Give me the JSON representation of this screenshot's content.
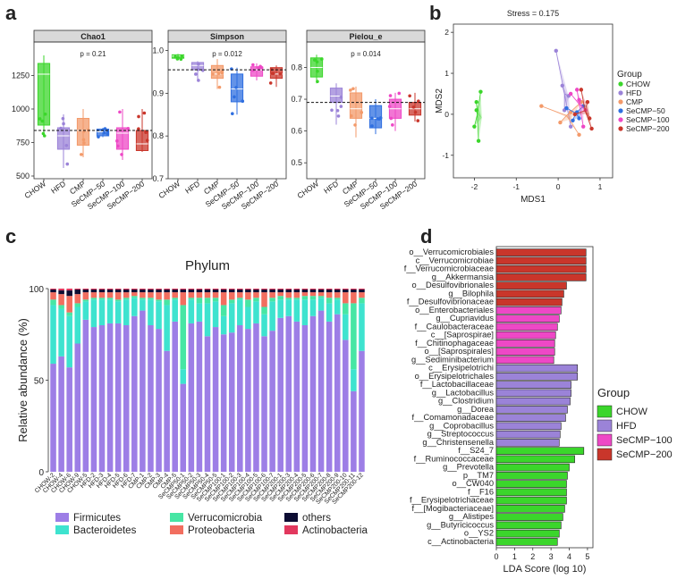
{
  "panel_labels": {
    "a": "a",
    "b": "b",
    "c": "c",
    "d": "d"
  },
  "colors": {
    "CHOW": "#3bd62b",
    "HFD": "#9b83d8",
    "CMP": "#f39a6a",
    "SeCMP-50": "#2f6fe0",
    "SeCMP-100": "#ee48c6",
    "SeCMP-200": "#c9362b",
    "Firmicutes": "#9d7ee6",
    "Bacteroidetes": "#3ee3cf",
    "Verrucomicrobia": "#47e6a4",
    "Proteobacteria": "#f26e5f",
    "others": "#0d0d33",
    "Actinobacteria": "#e2385e",
    "strip": "#d9d9d9"
  },
  "chart_data": [
    {
      "id": "a1",
      "type": "box",
      "title": "Chao1",
      "pvalue": "p = 0.21",
      "groups": [
        "CHOW",
        "HFD",
        "CMP",
        "SeCMP−50",
        "SeCMP−100",
        "SeCMP−200"
      ],
      "ylim": [
        480,
        1500
      ],
      "yticks": [
        500,
        750,
        1000,
        1250
      ],
      "ref_line": 840,
      "boxes": [
        {
          "q1": 880,
          "median": 1260,
          "q3": 1340,
          "min": 800,
          "max": 1400
        },
        {
          "q1": 700,
          "median": 800,
          "q3": 860,
          "min": 560,
          "max": 960
        },
        {
          "q1": 730,
          "median": 840,
          "q3": 930,
          "min": 640,
          "max": 1000
        },
        {
          "q1": 800,
          "median": 830,
          "q3": 850,
          "min": 790,
          "max": 860
        },
        {
          "q1": 700,
          "median": 820,
          "q3": 860,
          "min": 620,
          "max": 1000
        },
        {
          "q1": 690,
          "median": 740,
          "q3": 840,
          "min": 680,
          "max": 1000
        }
      ]
    },
    {
      "id": "a2",
      "type": "box",
      "title": "Simpson",
      "pvalue": "p = 0.012",
      "groups": [
        "CHOW",
        "HFD",
        "CMP",
        "SeCMP−50",
        "SeCMP−100",
        "SeCMP−200"
      ],
      "ylim": [
        0.7,
        1.02
      ],
      "yticks": [
        0.7,
        0.8,
        0.9,
        1.0
      ],
      "ref_line": 0.955,
      "boxes": [
        {
          "q1": 0.982,
          "median": 0.987,
          "q3": 0.99,
          "min": 0.978,
          "max": 0.992
        },
        {
          "q1": 0.955,
          "median": 0.965,
          "q3": 0.972,
          "min": 0.93,
          "max": 0.975
        },
        {
          "q1": 0.935,
          "median": 0.945,
          "q3": 0.965,
          "min": 0.91,
          "max": 0.98
        },
        {
          "q1": 0.88,
          "median": 0.91,
          "q3": 0.945,
          "min": 0.85,
          "max": 0.96
        },
        {
          "q1": 0.94,
          "median": 0.955,
          "q3": 0.962,
          "min": 0.93,
          "max": 0.97
        },
        {
          "q1": 0.935,
          "median": 0.945,
          "q3": 0.96,
          "min": 0.915,
          "max": 0.965
        }
      ]
    },
    {
      "id": "a3",
      "type": "box",
      "title": "Pielou_e",
      "pvalue": "p = 0.014",
      "groups": [
        "CHOW",
        "HFD",
        "CMP",
        "SeCMP−50",
        "SeCMP−100",
        "SeCMP−200"
      ],
      "ylim": [
        0.45,
        0.88
      ],
      "yticks": [
        0.5,
        0.6,
        0.7,
        0.8
      ],
      "ref_line": 0.69,
      "boxes": [
        {
          "q1": 0.77,
          "median": 0.8,
          "q3": 0.83,
          "min": 0.75,
          "max": 0.84
        },
        {
          "q1": 0.69,
          "median": 0.71,
          "q3": 0.735,
          "min": 0.62,
          "max": 0.75
        },
        {
          "q1": 0.64,
          "median": 0.67,
          "q3": 0.72,
          "min": 0.58,
          "max": 0.74
        },
        {
          "q1": 0.61,
          "median": 0.64,
          "q3": 0.68,
          "min": 0.59,
          "max": 0.7
        },
        {
          "q1": 0.64,
          "median": 0.67,
          "q3": 0.7,
          "min": 0.6,
          "max": 0.72
        },
        {
          "q1": 0.65,
          "median": 0.67,
          "q3": 0.69,
          "min": 0.63,
          "max": 0.72
        }
      ]
    },
    {
      "id": "b",
      "type": "scatter",
      "title": "Stress = 0.175",
      "xlabel": "MDS1",
      "ylabel": "MDS2",
      "xlim": [
        -2.5,
        1.3
      ],
      "ylim": [
        -1.55,
        2.2
      ],
      "xticks": [
        -2,
        -1,
        0,
        1
      ],
      "yticks": [
        -1,
        0,
        1,
        2
      ],
      "legend_title": "Group",
      "legend": [
        "CHOW",
        "HFD",
        "CMP",
        "SeCMP−50",
        "SeCMP−100",
        "SeCMP−200"
      ],
      "series": [
        {
          "name": "CHOW",
          "points": [
            [
              -1.85,
              0.55
            ],
            [
              -1.95,
              0.3
            ],
            [
              -1.95,
              0.1
            ],
            [
              -2.0,
              -0.3
            ],
            [
              -1.9,
              -0.65
            ]
          ]
        },
        {
          "name": "HFD",
          "points": [
            [
              -0.05,
              1.55
            ],
            [
              0.1,
              0.7
            ],
            [
              0.25,
              0.45
            ],
            [
              0.15,
              0.1
            ],
            [
              0.3,
              -0.3
            ]
          ]
        },
        {
          "name": "CMP",
          "points": [
            [
              -0.4,
              0.2
            ],
            [
              0.05,
              -0.2
            ],
            [
              0.3,
              0.05
            ],
            [
              0.5,
              -0.5
            ],
            [
              0.55,
              0.3
            ]
          ]
        },
        {
          "name": "SeCMP-50",
          "points": [
            [
              0.2,
              0.15
            ],
            [
              0.35,
              -0.15
            ],
            [
              0.6,
              0.2
            ],
            [
              0.5,
              -0.1
            ],
            [
              0.45,
              0.05
            ]
          ]
        },
        {
          "name": "SeCMP-100",
          "points": [
            [
              0.3,
              0.5
            ],
            [
              0.5,
              0.35
            ],
            [
              0.65,
              0.1
            ],
            [
              0.6,
              -0.3
            ],
            [
              0.45,
              0.6
            ]
          ]
        },
        {
          "name": "SeCMP-200",
          "points": [
            [
              0.55,
              0.6
            ],
            [
              0.7,
              0.3
            ],
            [
              0.4,
              0.0
            ],
            [
              0.75,
              -0.1
            ],
            [
              0.8,
              -0.35
            ]
          ]
        }
      ]
    },
    {
      "id": "c",
      "type": "bar",
      "stacked": true,
      "title": "Phylum",
      "ylabel": "Relative abundance (%)",
      "yticks": [
        0,
        50,
        100
      ],
      "categories": [
        "CHOW-2",
        "CHOW-4",
        "CHOW-6",
        "CHOW-9",
        "CHOW-5",
        "HFD-2",
        "HFD-3",
        "HFD-4",
        "HFD-5",
        "HFD-6",
        "HFD-7",
        "CMP-1",
        "CMP-2",
        "CMP-3",
        "CMP-4",
        "CMP-5",
        "SeCMP50-1",
        "SeCMP50-2",
        "SeCMP50-3",
        "SeCMP50-4",
        "SeCMP50-5",
        "SeCMP100-1",
        "SeCMP100-2",
        "SeCMP100-3",
        "SeCMP100-4",
        "SeCMP100-5",
        "SeCMP100-6",
        "SeCMP100-7",
        "SeCMP200-1",
        "SeCMP200-3",
        "SeCMP200-4",
        "SeCMP200-5",
        "SeCMP200-6",
        "SeCMP200-7",
        "SeCMP200-8",
        "SeCMP200-9",
        "SeCMP200-10",
        "SeCMP200-11",
        "SeCMP200-12"
      ],
      "series": [
        {
          "name": "Firmicutes",
          "values": [
            59,
            63,
            57,
            70,
            83,
            79,
            80,
            81,
            81,
            80,
            85,
            88,
            80,
            78,
            66,
            82,
            48,
            81,
            82,
            74,
            79,
            75,
            76,
            80,
            78,
            81,
            74,
            77,
            84,
            85,
            82,
            80,
            85,
            88,
            82,
            86,
            72,
            44,
            66
          ]
        },
        {
          "name": "Bacteroidetes",
          "values": [
            32,
            26,
            28,
            20,
            10,
            15,
            14,
            13,
            12,
            14,
            10,
            6,
            14,
            15,
            25,
            12,
            8,
            13,
            10,
            18,
            14,
            10,
            16,
            14,
            12,
            12,
            12,
            16,
            10,
            9,
            12,
            14,
            9,
            7,
            10,
            8,
            14,
            12,
            26
          ]
        },
        {
          "name": "Verrucomicrobia",
          "values": [
            3,
            2,
            2,
            2,
            1,
            1,
            1,
            1,
            1,
            1,
            1,
            1,
            1,
            1,
            3,
            1,
            35,
            1,
            3,
            3,
            2,
            6,
            2,
            1,
            4,
            2,
            4,
            2,
            2,
            1,
            1,
            2,
            2,
            1,
            3,
            1,
            6,
            36,
            3
          ]
        },
        {
          "name": "Proteobacteria",
          "values": [
            4,
            6,
            9,
            5,
            4,
            3,
            3,
            3,
            4,
            3,
            2,
            3,
            3,
            4,
            4,
            3,
            7,
            3,
            3,
            3,
            3,
            7,
            4,
            3,
            4,
            3,
            8,
            3,
            2,
            3,
            3,
            2,
            2,
            2,
            3,
            3,
            6,
            6,
            3
          ]
        },
        {
          "name": "others",
          "values": [
            1.5,
            2,
            3,
            2.5,
            1.5,
            1.5,
            1.5,
            1.5,
            1.5,
            1.5,
            1.5,
            1.5,
            1.5,
            1.5,
            1.5,
            1.5,
            1.5,
            1.5,
            1.5,
            1.5,
            1.5,
            1.5,
            1.5,
            1.5,
            1.5,
            1.5,
            1.5,
            1.5,
            1.5,
            1.5,
            1.5,
            1.5,
            1.5,
            1.5,
            1.5,
            1.5,
            1.5,
            1.5,
            1.5
          ]
        },
        {
          "name": "Actinobacteria",
          "values": [
            0.5,
            1,
            1,
            0.5,
            0.5,
            0.5,
            0.5,
            0.5,
            0.5,
            0.5,
            0.5,
            0.5,
            0.5,
            0.5,
            0.5,
            0.5,
            0.5,
            0.5,
            0.5,
            0.5,
            0.5,
            0.5,
            0.5,
            0.5,
            0.5,
            0.5,
            0.5,
            0.5,
            0.5,
            0.5,
            0.5,
            0.5,
            0.5,
            0.5,
            0.5,
            0.5,
            0.5,
            0.5,
            0.5
          ]
        }
      ],
      "legend": [
        "Firmicutes",
        "Verrucomicrobia",
        "others",
        "Bacteroidetes",
        "Proteobacteria",
        "Actinobacteria"
      ]
    },
    {
      "id": "d",
      "type": "bar",
      "orientation": "horizontal",
      "xlabel": "LDA Score (log 10)",
      "xlim": [
        0,
        5.3
      ],
      "xticks": [
        0,
        1,
        2,
        3,
        4,
        5
      ],
      "legend_title": "Group",
      "legend": [
        "CHOW",
        "HFD",
        "SeCMP−100",
        "SeCMP−200"
      ],
      "bars": [
        {
          "label": "o__Verrucomicrobiales",
          "value": 4.92,
          "group": "SeCMP-200"
        },
        {
          "label": "c__Verrucomicrobiae",
          "value": 4.92,
          "group": "SeCMP-200"
        },
        {
          "label": "f__Verrucomicrobiaceae",
          "value": 4.92,
          "group": "SeCMP-200"
        },
        {
          "label": "g__Akkermansia",
          "value": 4.92,
          "group": "SeCMP-200"
        },
        {
          "label": "o__Desulfovibrionales",
          "value": 3.85,
          "group": "SeCMP-200"
        },
        {
          "label": "g__Bilophila",
          "value": 3.7,
          "group": "SeCMP-200"
        },
        {
          "label": "f__Desulfovibrionaceae",
          "value": 3.6,
          "group": "SeCMP-200"
        },
        {
          "label": "o__Enterobacteriales",
          "value": 3.55,
          "group": "SeCMP-100"
        },
        {
          "label": "g__Cupriavidus",
          "value": 3.45,
          "group": "SeCMP-100"
        },
        {
          "label": "f__Caulobacteraceae",
          "value": 3.35,
          "group": "SeCMP-100"
        },
        {
          "label": "c__[Saprospirae]",
          "value": 3.25,
          "group": "SeCMP-100"
        },
        {
          "label": "f__Chitinophagaceae",
          "value": 3.2,
          "group": "SeCMP-100"
        },
        {
          "label": "o__[Saprospirales]",
          "value": 3.2,
          "group": "SeCMP-100"
        },
        {
          "label": "g__Sediminibacterium",
          "value": 3.15,
          "group": "SeCMP-100"
        },
        {
          "label": "c__Erysipelotrichi",
          "value": 4.45,
          "group": "HFD"
        },
        {
          "label": "o__Erysipelotrichales",
          "value": 4.45,
          "group": "HFD"
        },
        {
          "label": "f__Lactobacillaceae",
          "value": 4.1,
          "group": "HFD"
        },
        {
          "label": "g__Lactobacillus",
          "value": 4.1,
          "group": "HFD"
        },
        {
          "label": "g__Clostridium",
          "value": 4.05,
          "group": "HFD"
        },
        {
          "label": "g__Dorea",
          "value": 3.9,
          "group": "HFD"
        },
        {
          "label": "f__Comamonadaceae",
          "value": 3.8,
          "group": "HFD"
        },
        {
          "label": "g__Coprobacillus",
          "value": 3.55,
          "group": "HFD"
        },
        {
          "label": "g__Streptococcus",
          "value": 3.5,
          "group": "HFD"
        },
        {
          "label": "g__Christensenella",
          "value": 3.45,
          "group": "HFD"
        },
        {
          "label": "f__S24_7",
          "value": 4.8,
          "group": "CHOW"
        },
        {
          "label": "f__Ruminococcaceae",
          "value": 4.3,
          "group": "CHOW"
        },
        {
          "label": "g__Prevotella",
          "value": 4.0,
          "group": "CHOW"
        },
        {
          "label": "p__TM7",
          "value": 3.9,
          "group": "CHOW"
        },
        {
          "label": "o__CW040",
          "value": 3.85,
          "group": "CHOW"
        },
        {
          "label": "f__F16",
          "value": 3.85,
          "group": "CHOW"
        },
        {
          "label": "f__Erysipelotrichaceae",
          "value": 3.85,
          "group": "CHOW"
        },
        {
          "label": "f__[Mogibacteriaceae]",
          "value": 3.75,
          "group": "CHOW"
        },
        {
          "label": "g__Alistipes",
          "value": 3.65,
          "group": "CHOW"
        },
        {
          "label": "g__Butyricicoccus",
          "value": 3.55,
          "group": "CHOW"
        },
        {
          "label": "o__YS2",
          "value": 3.45,
          "group": "CHOW"
        },
        {
          "label": "c__Actinobacteria",
          "value": 3.35,
          "group": "CHOW"
        }
      ]
    }
  ]
}
